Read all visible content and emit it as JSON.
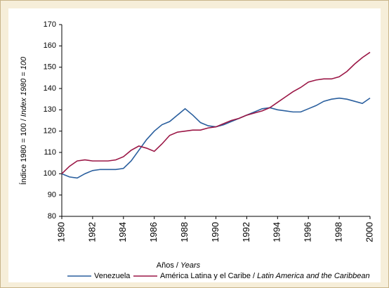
{
  "chart_data": {
    "type": "line",
    "xlabel": "Años / Years",
    "ylabel": "Índice 1980 = 100 / Index 1980 = 100",
    "x": [
      1980,
      1980.5,
      1981,
      1981.5,
      1982,
      1982.5,
      1983,
      1983.5,
      1984,
      1984.5,
      1985,
      1985.5,
      1986,
      1986.5,
      1987,
      1987.5,
      1988,
      1988.5,
      1989,
      1989.5,
      1990,
      1990.5,
      1991,
      1991.5,
      1992,
      1992.5,
      1993,
      1993.5,
      1994,
      1994.5,
      1995,
      1995.5,
      1996,
      1996.5,
      1997,
      1997.5,
      1998,
      1998.5,
      1999,
      1999.5,
      2000
    ],
    "series": [
      {
        "name": "Venezuela",
        "color": "#2a5f9e",
        "values": [
          100,
          98.5,
          98,
          100,
          101.5,
          102,
          102,
          102,
          102.5,
          106,
          111,
          116,
          120,
          123,
          124.5,
          127.5,
          130.5,
          127.5,
          124,
          122.5,
          122,
          123,
          124.5,
          126,
          127.5,
          129,
          130.5,
          131,
          130,
          129.5,
          129,
          129,
          130.5,
          132,
          134,
          135,
          135.5,
          135,
          134,
          133,
          135.5
        ]
      },
      {
        "name": "América Latina y el Caribe / Latin America and the Caribbean",
        "color": "#9b1746",
        "values": [
          100,
          103.5,
          106,
          106.5,
          106,
          106,
          106,
          106.5,
          108,
          111,
          113,
          112,
          110.5,
          114,
          118,
          119.5,
          120,
          120.5,
          120.5,
          121.5,
          122,
          123.5,
          125,
          126,
          127.5,
          128.5,
          129.5,
          131,
          133.5,
          136,
          138.5,
          140.5,
          143,
          144,
          144.5,
          144.5,
          145.5,
          148,
          151.5,
          154.5,
          157
        ]
      }
    ],
    "xlim": [
      1980,
      2000
    ],
    "xticks": [
      1980,
      1982,
      1984,
      1986,
      1988,
      1990,
      1992,
      1994,
      1996,
      1998,
      2000
    ],
    "ylim": [
      80,
      170
    ],
    "yticks": [
      80,
      90,
      100,
      110,
      120,
      130,
      140,
      150,
      160,
      170
    ],
    "grid": false
  }
}
